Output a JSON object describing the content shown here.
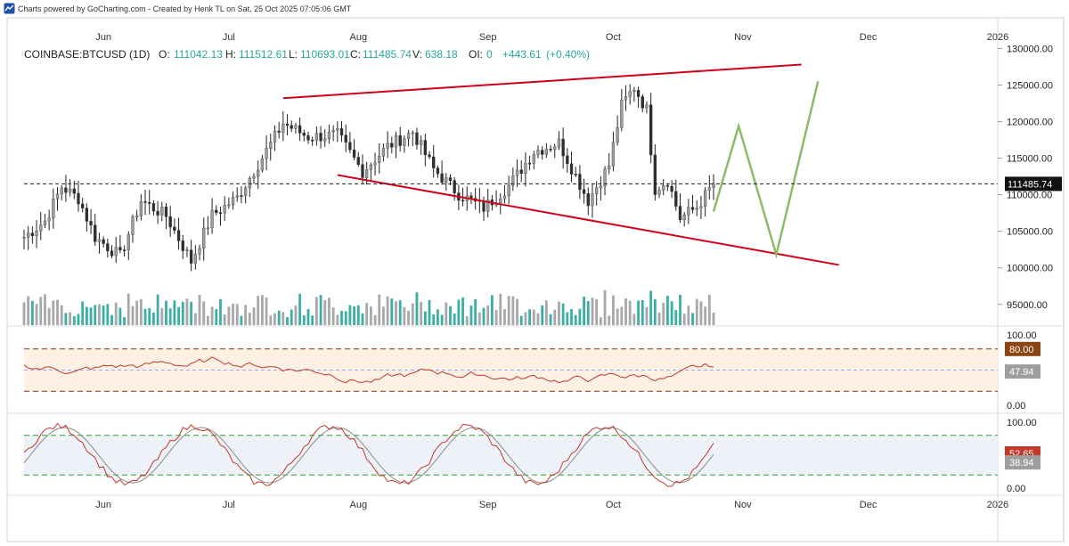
{
  "credit": {
    "text": "Charts powered by GoCharting.com - Created by Henk TL on Sat, 25 Oct 2025 07:05:06 GMT"
  },
  "legend": {
    "symbol": "COINBASE:BTCUSD (1D)",
    "o_label": "O:",
    "o_value": "111042.13",
    "h_label": "H:",
    "h_value": "111512.61",
    "l_label": "L:",
    "l_value": "110693.01",
    "c_label": "C:",
    "c_value": "111485.74",
    "v_label": "V:",
    "v_value": "638.18",
    "oi_label": "OI:",
    "oi_value": "0",
    "change": "+443.61",
    "change_pct": "(+0.40%)"
  },
  "colors": {
    "up": "#26a69a",
    "down": "#2f2f2f",
    "wick": "#222222",
    "upBody": "#9e9e9e",
    "volUp": "#26a69a",
    "volDown": "#9e9e9e",
    "trend": "#d0021b",
    "projection": "#8fba6a",
    "rsiBand": "#fdf1e4",
    "rsiLine": "#c0392b",
    "rsiMid": "#9aa7ff",
    "rsiDash": "#8b2e0c",
    "stochBand": "#eef2f8",
    "stochK": "#c0392b",
    "stochD": "#8a8a8a",
    "stochDash": "#2e9e2e",
    "tagBg": "#9e9e9e",
    "priceTag": "#111111",
    "tag80": "#8b4513",
    "tagRed": "#c0392b"
  },
  "chart_data": {
    "type": "candlestick",
    "title": "COINBASE:BTCUSD (1D)",
    "x_months": [
      "Jun",
      "Jul",
      "Aug",
      "Sep",
      "Oct",
      "Nov",
      "Dec",
      "2026"
    ],
    "y_ticks": [
      95000,
      100000,
      105000,
      110000,
      115000,
      120000,
      125000,
      130000
    ],
    "y_tick_labels": [
      "95000.00",
      "100000.00",
      "105000.00",
      "110000.00",
      "115000.00",
      "120000.00",
      "125000.00",
      "130000.00"
    ],
    "ylim": [
      94000,
      132000
    ],
    "last_price": 111485.74,
    "last_price_label": "111485.74",
    "x_start": "2025-05-13",
    "x_end": "2026-01-01",
    "close_series": [
      {
        "date": "2025-05-13",
        "close": 104200
      },
      {
        "date": "2025-05-18",
        "close": 106400
      },
      {
        "date": "2025-05-22",
        "close": 111100
      },
      {
        "date": "2025-05-26",
        "close": 109500
      },
      {
        "date": "2025-05-30",
        "close": 104200
      },
      {
        "date": "2025-06-05",
        "close": 101600
      },
      {
        "date": "2025-06-10",
        "close": 109200
      },
      {
        "date": "2025-06-16",
        "close": 107100
      },
      {
        "date": "2025-06-22",
        "close": 100900
      },
      {
        "date": "2025-06-27",
        "close": 107200
      },
      {
        "date": "2025-07-03",
        "close": 109600
      },
      {
        "date": "2025-07-10",
        "close": 116000
      },
      {
        "date": "2025-07-14",
        "close": 119800
      },
      {
        "date": "2025-07-20",
        "close": 117900
      },
      {
        "date": "2025-07-27",
        "close": 118200
      },
      {
        "date": "2025-08-02",
        "close": 113200
      },
      {
        "date": "2025-08-08",
        "close": 116600
      },
      {
        "date": "2025-08-14",
        "close": 118600
      },
      {
        "date": "2025-08-19",
        "close": 113500
      },
      {
        "date": "2025-08-25",
        "close": 110100
      },
      {
        "date": "2025-08-31",
        "close": 108200
      },
      {
        "date": "2025-09-06",
        "close": 111200
      },
      {
        "date": "2025-09-12",
        "close": 115900
      },
      {
        "date": "2025-09-18",
        "close": 117100
      },
      {
        "date": "2025-09-25",
        "close": 109200
      },
      {
        "date": "2025-09-30",
        "close": 114000
      },
      {
        "date": "2025-10-03",
        "close": 122200
      },
      {
        "date": "2025-10-06",
        "close": 124700
      },
      {
        "date": "2025-10-09",
        "close": 121600
      },
      {
        "date": "2025-10-11",
        "close": 110800
      },
      {
        "date": "2025-10-14",
        "close": 112000
      },
      {
        "date": "2025-10-17",
        "close": 106800
      },
      {
        "date": "2025-10-21",
        "close": 108300
      },
      {
        "date": "2025-10-25",
        "close": 111485.74
      }
    ],
    "candle_days_per_bar": 1,
    "annotations": {
      "upper_trendline": [
        {
          "date": "2025-07-14",
          "price": 123200
        },
        {
          "date": "2025-11-15",
          "price": 127800
        }
      ],
      "lower_trendline": [
        {
          "date": "2025-07-27",
          "price": 112700
        },
        {
          "date": "2025-11-24",
          "price": 100400
        }
      ],
      "projection_path": [
        {
          "date": "2025-10-25",
          "price": 107700
        },
        {
          "date": "2025-10-31",
          "price": 119400
        },
        {
          "date": "2025-11-09",
          "price": 101800
        },
        {
          "date": "2025-11-19",
          "price": 125500
        }
      ]
    },
    "rsi": {
      "y_ticks": [
        0,
        100
      ],
      "y_tick_labels": [
        "0.00",
        "100.00"
      ],
      "overbought": 80,
      "overbought_label": "80.00",
      "oversold": 20,
      "mid": 50,
      "last": 47.94,
      "last_label": "47.94"
    },
    "stoch": {
      "y_ticks": [
        0,
        100
      ],
      "y_tick_labels": [
        "0.00",
        "100.00"
      ],
      "upper": 80,
      "lower": 20,
      "k_last": 52.65,
      "k_last_label": "52.65",
      "d_last": 38.94,
      "d_last_label": "38.94"
    }
  }
}
